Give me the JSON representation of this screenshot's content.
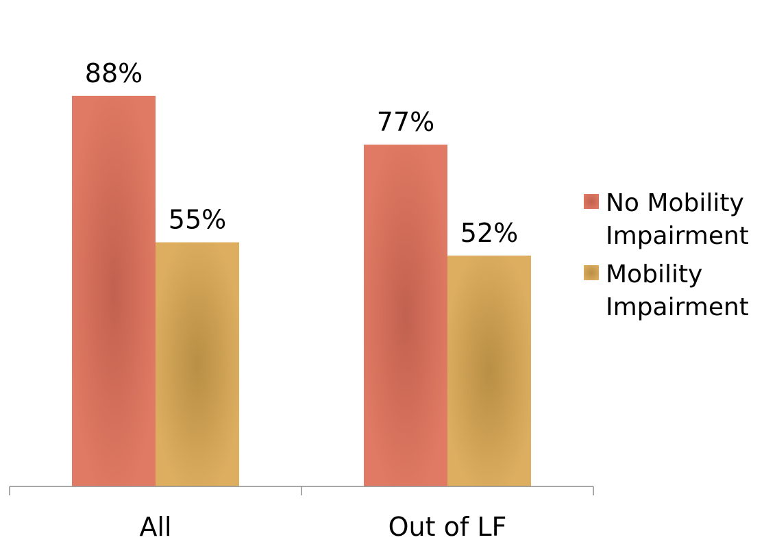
{
  "chart_data": {
    "type": "bar",
    "categories": [
      "All",
      "Out of LF"
    ],
    "series": [
      {
        "name": "No Mobility Impairment",
        "values": [
          88,
          77
        ],
        "labels": [
          "88%",
          "77%"
        ],
        "color": "#E07A64",
        "shade_color": "#C2614F"
      },
      {
        "name": "Mobility Impairment",
        "values": [
          55,
          52
        ],
        "labels": [
          "55%",
          "52%"
        ],
        "color": "#DDAE60",
        "shade_color": "#B88F45"
      }
    ],
    "title": "",
    "xlabel": "",
    "ylabel": "",
    "ylim": [
      0,
      100
    ],
    "grid": false,
    "legend_position": "right",
    "y_axis_visible": false
  },
  "colors": {
    "axis_line": "#8C8C8C",
    "text": "#000000"
  }
}
